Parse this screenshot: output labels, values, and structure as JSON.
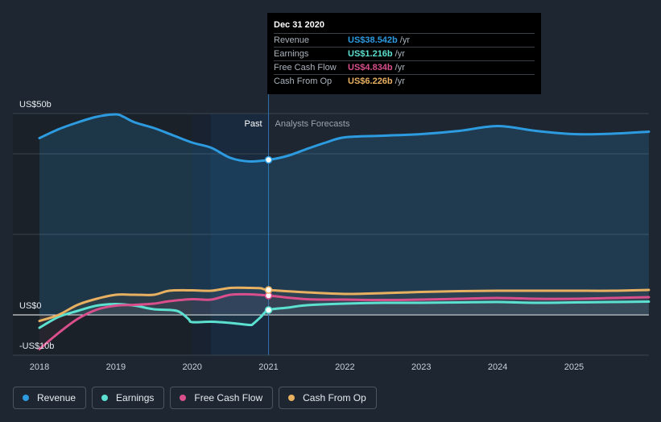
{
  "tooltip": {
    "date": "Dec 31 2020",
    "rows": [
      {
        "name": "Revenue",
        "value": "US$38.542b",
        "unit": "/yr",
        "color": "#2d9be0"
      },
      {
        "name": "Earnings",
        "value": "US$1.216b",
        "unit": "/yr",
        "color": "#5ce0cf"
      },
      {
        "name": "Free Cash Flow",
        "value": "US$4.834b",
        "unit": "/yr",
        "color": "#d94f8c"
      },
      {
        "name": "Cash From Op",
        "value": "US$6.226b",
        "unit": "/yr",
        "color": "#e8b061"
      }
    ]
  },
  "legend": [
    {
      "name": "Revenue",
      "color": "#2d9be0"
    },
    {
      "name": "Earnings",
      "color": "#5ce0cf"
    },
    {
      "name": "Free Cash Flow",
      "color": "#d94f8c"
    },
    {
      "name": "Cash From Op",
      "color": "#e8b061"
    }
  ],
  "chart_data": {
    "type": "line",
    "y_labels": [
      "US$50b",
      "US$0",
      "-US$10b"
    ],
    "region_labels": {
      "past": "Past",
      "forecast": "Analysts Forecasts"
    },
    "divider_x": 2021.0,
    "past_shade_start": 2020.0,
    "xlim": [
      2017.9,
      2025.98
    ],
    "ylim": [
      -10,
      50
    ],
    "x_ticks": [
      {
        "label": "2018",
        "x": 2018
      },
      {
        "label": "2019",
        "x": 2019
      },
      {
        "label": "2020",
        "x": 2020
      },
      {
        "label": "2021",
        "x": 2021
      },
      {
        "label": "2022",
        "x": 2022
      },
      {
        "label": "2023",
        "x": 2023
      },
      {
        "label": "2024",
        "x": 2024
      },
      {
        "label": "2025",
        "x": 2025
      }
    ],
    "series": [
      {
        "name": "Revenue",
        "color": "#2d9be0",
        "area": true,
        "x": [
          2018.0,
          2018.25,
          2018.5,
          2018.75,
          2019.0,
          2019.1,
          2019.25,
          2019.5,
          2019.75,
          2020.0,
          2020.25,
          2020.5,
          2020.75,
          2021.0,
          2021.25,
          2021.5,
          2021.75,
          2022.0,
          2022.5,
          2023.0,
          2023.5,
          2024.0,
          2024.5,
          2025.0,
          2025.5,
          2025.98
        ],
        "y": [
          43.9,
          46.1,
          47.8,
          49.2,
          49.8,
          49.2,
          47.8,
          46.4,
          44.6,
          42.8,
          41.5,
          39.0,
          38.1,
          38.5,
          39.5,
          41.2,
          42.8,
          44.1,
          44.5,
          44.9,
          45.7,
          46.9,
          45.7,
          44.9,
          45.0,
          45.5
        ]
      },
      {
        "name": "Earnings",
        "color": "#5ce0cf",
        "area": false,
        "x": [
          2018.0,
          2018.25,
          2018.5,
          2018.75,
          2019.0,
          2019.25,
          2019.5,
          2019.8,
          2019.95,
          2020.0,
          2020.25,
          2020.5,
          2020.75,
          2020.8,
          2020.9,
          2021.0,
          2021.25,
          2021.5,
          2022.0,
          2022.5,
          2023.0,
          2023.5,
          2024.0,
          2024.5,
          2025.0,
          2025.5,
          2025.98
        ],
        "y": [
          -3.2,
          -0.5,
          1.0,
          2.3,
          2.7,
          2.3,
          1.4,
          1.0,
          -1.0,
          -1.8,
          -1.7,
          -2.0,
          -2.5,
          -2.2,
          -0.5,
          1.2,
          1.8,
          2.4,
          2.8,
          3.0,
          3.0,
          3.1,
          3.2,
          3.0,
          3.1,
          3.2,
          3.3
        ]
      },
      {
        "name": "Free Cash Flow",
        "color": "#d94f8c",
        "area": false,
        "x": [
          2018.0,
          2018.25,
          2018.5,
          2018.75,
          2019.0,
          2019.25,
          2019.5,
          2019.7,
          2020.0,
          2020.25,
          2020.5,
          2020.75,
          2021.0,
          2021.5,
          2022.0,
          2022.5,
          2023.0,
          2023.5,
          2024.0,
          2024.5,
          2025.0,
          2025.5,
          2025.98
        ],
        "y": [
          -8.5,
          -4.5,
          -1.0,
          1.3,
          2.3,
          2.5,
          2.8,
          3.4,
          3.9,
          3.8,
          5.0,
          5.1,
          4.8,
          3.9,
          3.8,
          3.7,
          3.8,
          4.0,
          4.2,
          4.0,
          4.0,
          4.2,
          4.4
        ]
      },
      {
        "name": "Cash From Op",
        "color": "#e8b061",
        "area": false,
        "x": [
          2018.0,
          2018.25,
          2018.5,
          2018.75,
          2019.0,
          2019.25,
          2019.5,
          2019.7,
          2020.0,
          2020.25,
          2020.5,
          2020.75,
          2020.9,
          2021.0,
          2021.5,
          2022.0,
          2022.5,
          2023.0,
          2023.5,
          2024.0,
          2024.5,
          2025.0,
          2025.5,
          2025.98
        ],
        "y": [
          -1.5,
          0.0,
          2.5,
          4.0,
          5.0,
          5.0,
          5.0,
          6.0,
          6.1,
          6.0,
          6.7,
          6.7,
          6.6,
          6.2,
          5.6,
          5.2,
          5.4,
          5.7,
          5.9,
          6.0,
          6.0,
          6.0,
          6.0,
          6.2
        ]
      }
    ],
    "markers": [
      {
        "series": "Revenue",
        "x": 2021.0,
        "y": 38.5
      },
      {
        "series": "Earnings",
        "x": 2021.0,
        "y": 1.2
      },
      {
        "series": "Free Cash Flow",
        "x": 2021.0,
        "y": 4.8
      },
      {
        "series": "Cash From Op",
        "x": 2021.0,
        "y": 6.2
      }
    ]
  }
}
